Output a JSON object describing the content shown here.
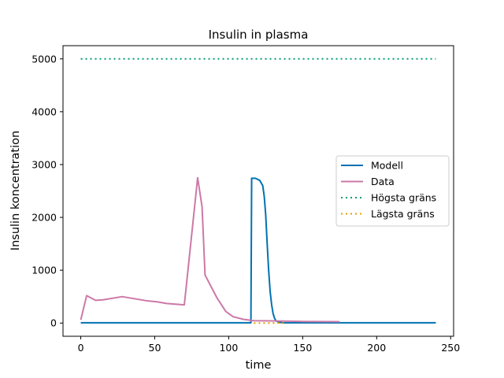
{
  "chart_data": {
    "type": "line",
    "title": "Insulin in plasma",
    "xlabel": "time",
    "ylabel": "Insulin koncentration",
    "xlim": [
      -12,
      252
    ],
    "ylim": [
      -250,
      5250
    ],
    "xticks": [
      0,
      50,
      100,
      150,
      200,
      250
    ],
    "yticks": [
      0,
      1000,
      2000,
      3000,
      4000,
      5000
    ],
    "grid": false,
    "legend_position": "center-right",
    "series": [
      {
        "name": "Modell",
        "color": "#0072b2",
        "style": "solid",
        "points": [
          [
            0,
            5
          ],
          [
            10,
            5
          ],
          [
            50,
            5
          ],
          [
            100,
            5
          ],
          [
            115,
            5
          ],
          [
            115.5,
            2740
          ],
          [
            118,
            2740
          ],
          [
            121,
            2700
          ],
          [
            123,
            2600
          ],
          [
            124,
            2400
          ],
          [
            125,
            2050
          ],
          [
            126,
            1500
          ],
          [
            127,
            1000
          ],
          [
            128,
            600
          ],
          [
            129,
            350
          ],
          [
            130,
            180
          ],
          [
            131,
            90
          ],
          [
            132,
            40
          ],
          [
            134,
            15
          ],
          [
            137,
            5
          ],
          [
            150,
            5
          ],
          [
            200,
            5
          ],
          [
            240,
            5
          ]
        ]
      },
      {
        "name": "Data",
        "color": "#cc79a7",
        "style": "solid",
        "points": [
          [
            0,
            60
          ],
          [
            4,
            520
          ],
          [
            10,
            430
          ],
          [
            15,
            440
          ],
          [
            28,
            500
          ],
          [
            45,
            420
          ],
          [
            52,
            400
          ],
          [
            58,
            370
          ],
          [
            70,
            345
          ],
          [
            79,
            2750
          ],
          [
            82,
            2200
          ],
          [
            84,
            910
          ],
          [
            92,
            480
          ],
          [
            98,
            220
          ],
          [
            103,
            120
          ],
          [
            110,
            70
          ],
          [
            117,
            45
          ],
          [
            130,
            40
          ],
          [
            150,
            30
          ],
          [
            175,
            25
          ]
        ]
      },
      {
        "name": "Högsta gräns",
        "color": "#009e73",
        "style": "dotted",
        "points": [
          [
            0,
            5000
          ],
          [
            240,
            5000
          ]
        ]
      },
      {
        "name": "Lägsta gräns",
        "color": "#e69f00",
        "style": "dotted",
        "points": [
          [
            117,
            0
          ],
          [
            138,
            0
          ]
        ]
      }
    ]
  }
}
